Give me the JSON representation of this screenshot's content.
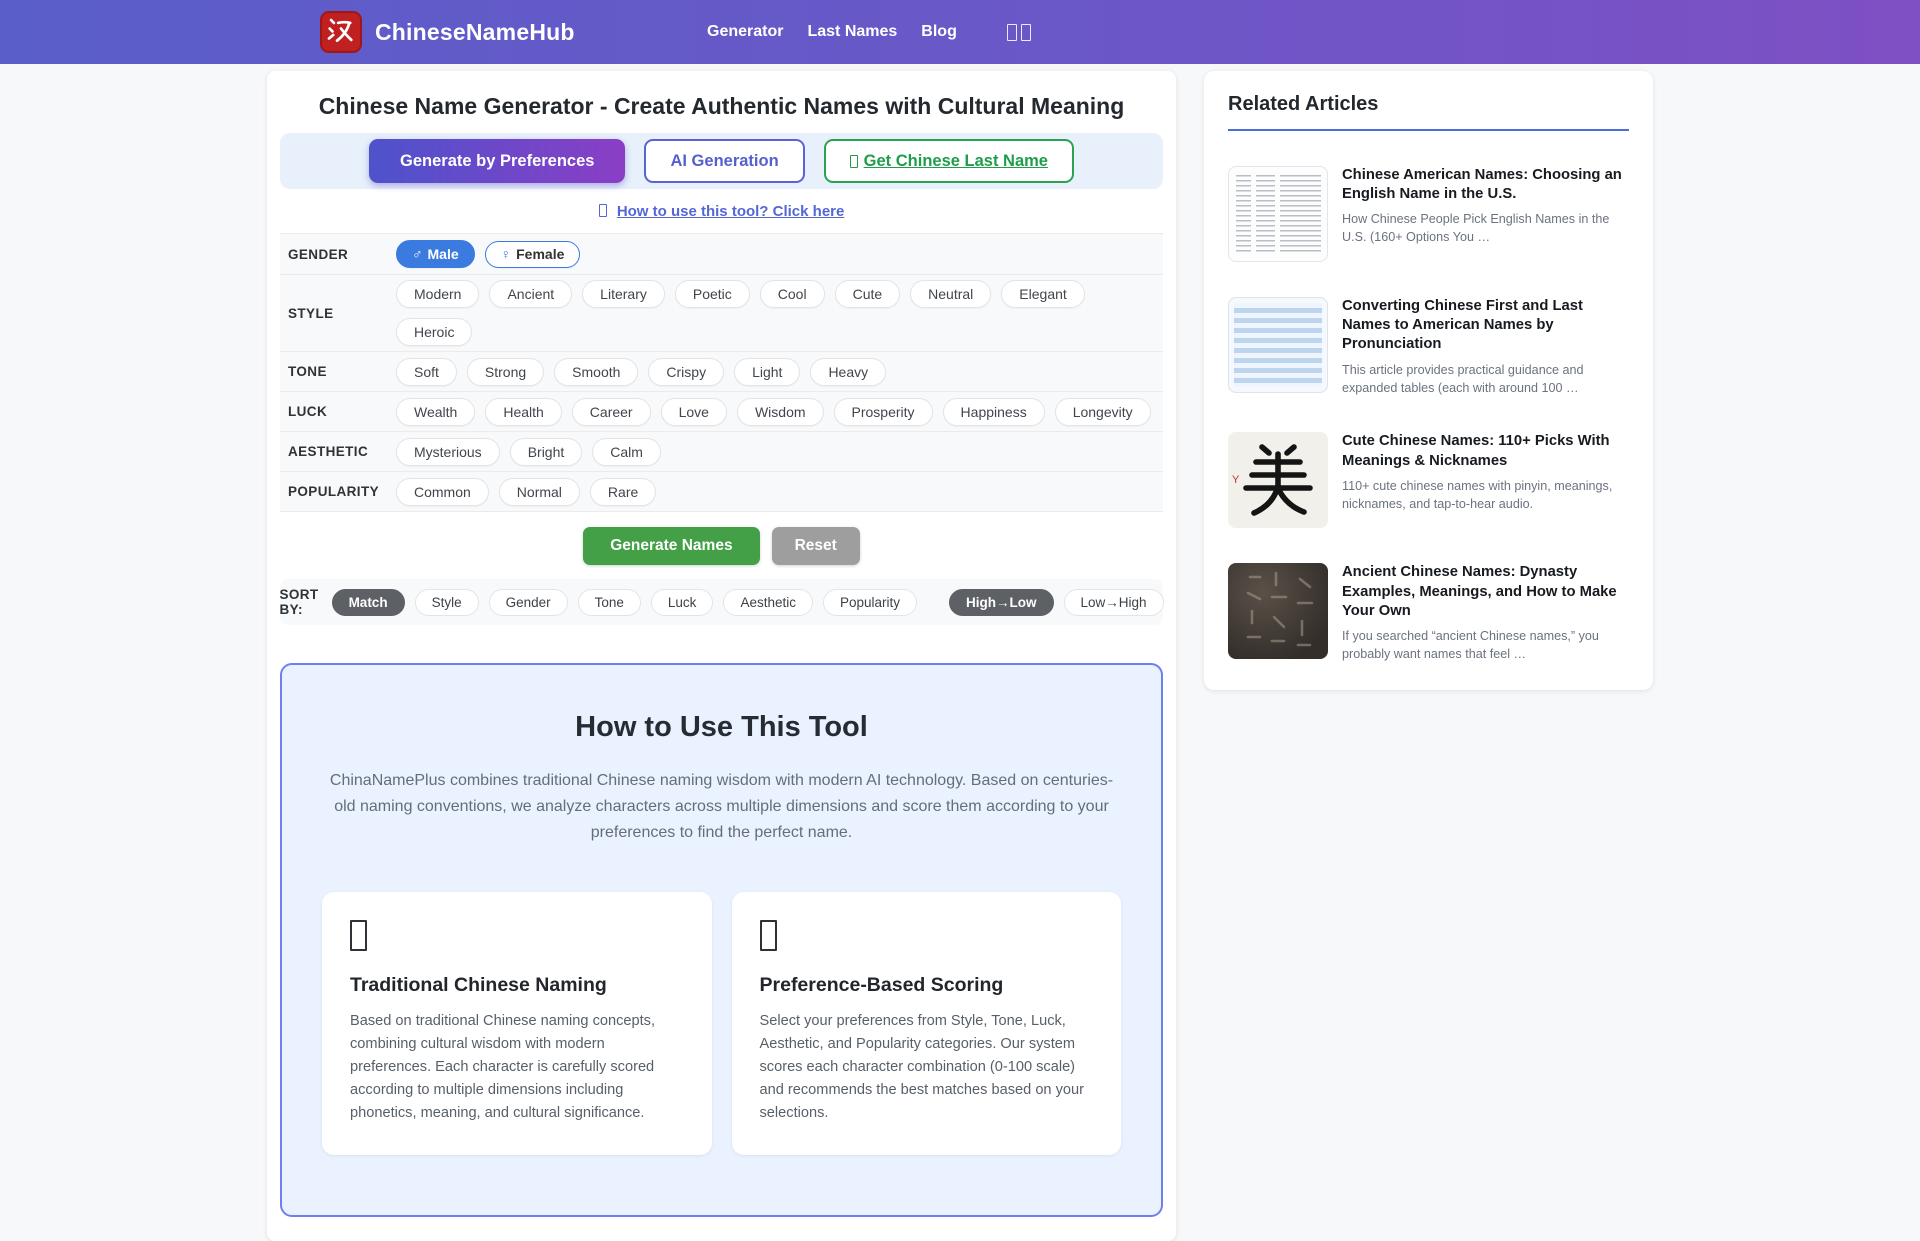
{
  "header": {
    "logo_char": "汉",
    "brand": "ChineseNameHub",
    "nav": [
      {
        "label": "Generator"
      },
      {
        "label": "Last Names"
      },
      {
        "label": "Blog"
      }
    ]
  },
  "main": {
    "title": "Chinese Name Generator - Create Authentic Names with Cultural Meaning",
    "tabs": [
      {
        "label": "Generate by Preferences",
        "variant": "primary",
        "icon": false
      },
      {
        "label": "AI Generation",
        "variant": "indigo",
        "icon": false
      },
      {
        "label": "Get Chinese Last Name",
        "variant": "green",
        "icon": true
      }
    ],
    "help_link": "How to use this tool? Click here",
    "filters": [
      {
        "label": "GENDER",
        "options": [
          {
            "label": "Male",
            "symbol": "♂",
            "variant": "solid-blue"
          },
          {
            "label": "Female",
            "symbol": "♀",
            "variant": "outline-blue"
          }
        ]
      },
      {
        "label": "STYLE",
        "options": [
          {
            "label": "Modern"
          },
          {
            "label": "Ancient"
          },
          {
            "label": "Literary"
          },
          {
            "label": "Poetic"
          },
          {
            "label": "Cool"
          },
          {
            "label": "Cute"
          },
          {
            "label": "Neutral"
          },
          {
            "label": "Elegant"
          },
          {
            "label": "Heroic"
          }
        ]
      },
      {
        "label": "TONE",
        "options": [
          {
            "label": "Soft"
          },
          {
            "label": "Strong"
          },
          {
            "label": "Smooth"
          },
          {
            "label": "Crispy"
          },
          {
            "label": "Light"
          },
          {
            "label": "Heavy"
          }
        ]
      },
      {
        "label": "LUCK",
        "options": [
          {
            "label": "Wealth"
          },
          {
            "label": "Health"
          },
          {
            "label": "Career"
          },
          {
            "label": "Love"
          },
          {
            "label": "Wisdom"
          },
          {
            "label": "Prosperity"
          },
          {
            "label": "Happiness"
          },
          {
            "label": "Longevity"
          }
        ]
      },
      {
        "label": "AESTHETIC",
        "options": [
          {
            "label": "Mysterious"
          },
          {
            "label": "Bright"
          },
          {
            "label": "Calm"
          }
        ]
      },
      {
        "label": "POPULARITY",
        "options": [
          {
            "label": "Common"
          },
          {
            "label": "Normal"
          },
          {
            "label": "Rare"
          }
        ]
      }
    ],
    "actions": {
      "generate": "Generate Names",
      "reset": "Reset"
    },
    "sort": {
      "label": "SORT BY:",
      "options": [
        {
          "label": "Match",
          "active": true
        },
        {
          "label": "Style",
          "active": false
        },
        {
          "label": "Gender",
          "active": false
        },
        {
          "label": "Tone",
          "active": false
        },
        {
          "label": "Luck",
          "active": false
        },
        {
          "label": "Aesthetic",
          "active": false
        },
        {
          "label": "Popularity",
          "active": false
        }
      ],
      "direction": [
        {
          "label": "High→Low",
          "active": true
        },
        {
          "label": "Low→High",
          "active": false
        }
      ]
    },
    "howto": {
      "title": "How to Use This Tool",
      "intro": "ChinaNamePlus combines traditional Chinese naming wisdom with modern AI technology. Based on centuries-old naming conventions, we analyze characters across multiple dimensions and score them according to your preferences to find the perfect name.",
      "cards": [
        {
          "title": "Traditional Chinese Naming",
          "body": "Based on traditional Chinese naming concepts, combining cultural wisdom with modern preferences. Each character is carefully scored according to multiple dimensions including phonetics, meaning, and cultural significance."
        },
        {
          "title": "Preference-Based Scoring",
          "body": "Select your preferences from Style, Tone, Luck, Aesthetic, and Popularity categories. Our system scores each character combination (0-100 scale) and recommends the best matches based on your selections."
        }
      ]
    }
  },
  "sidebar": {
    "title": "Related Articles",
    "articles": [
      {
        "title": "Chinese American Names: Choosing an English Name in the U.S.",
        "desc": "How Chinese People Pick English Names in the U.S. (160+ Options You …",
        "thumb": "doc-table"
      },
      {
        "title": "Converting Chinese First and Last Names to American Names by Pronunciation",
        "desc": "This article provides practical guidance and expanded tables (each with around 100 …",
        "thumb": "blue-table"
      },
      {
        "title": "Cute Chinese Names: 110+ Picks With Meanings & Nicknames",
        "desc": "110+ cute chinese names with pinyin, meanings, nicknames, and tap-to-hear audio.",
        "thumb": "calligraphy",
        "thumb_char": "美"
      },
      {
        "title": "Ancient Chinese Names: Dynasty Examples, Meanings, and How to Make Your Own",
        "desc": "If you searched “ancient Chinese names,” you probably want names that feel …",
        "thumb": "stone"
      }
    ]
  }
}
